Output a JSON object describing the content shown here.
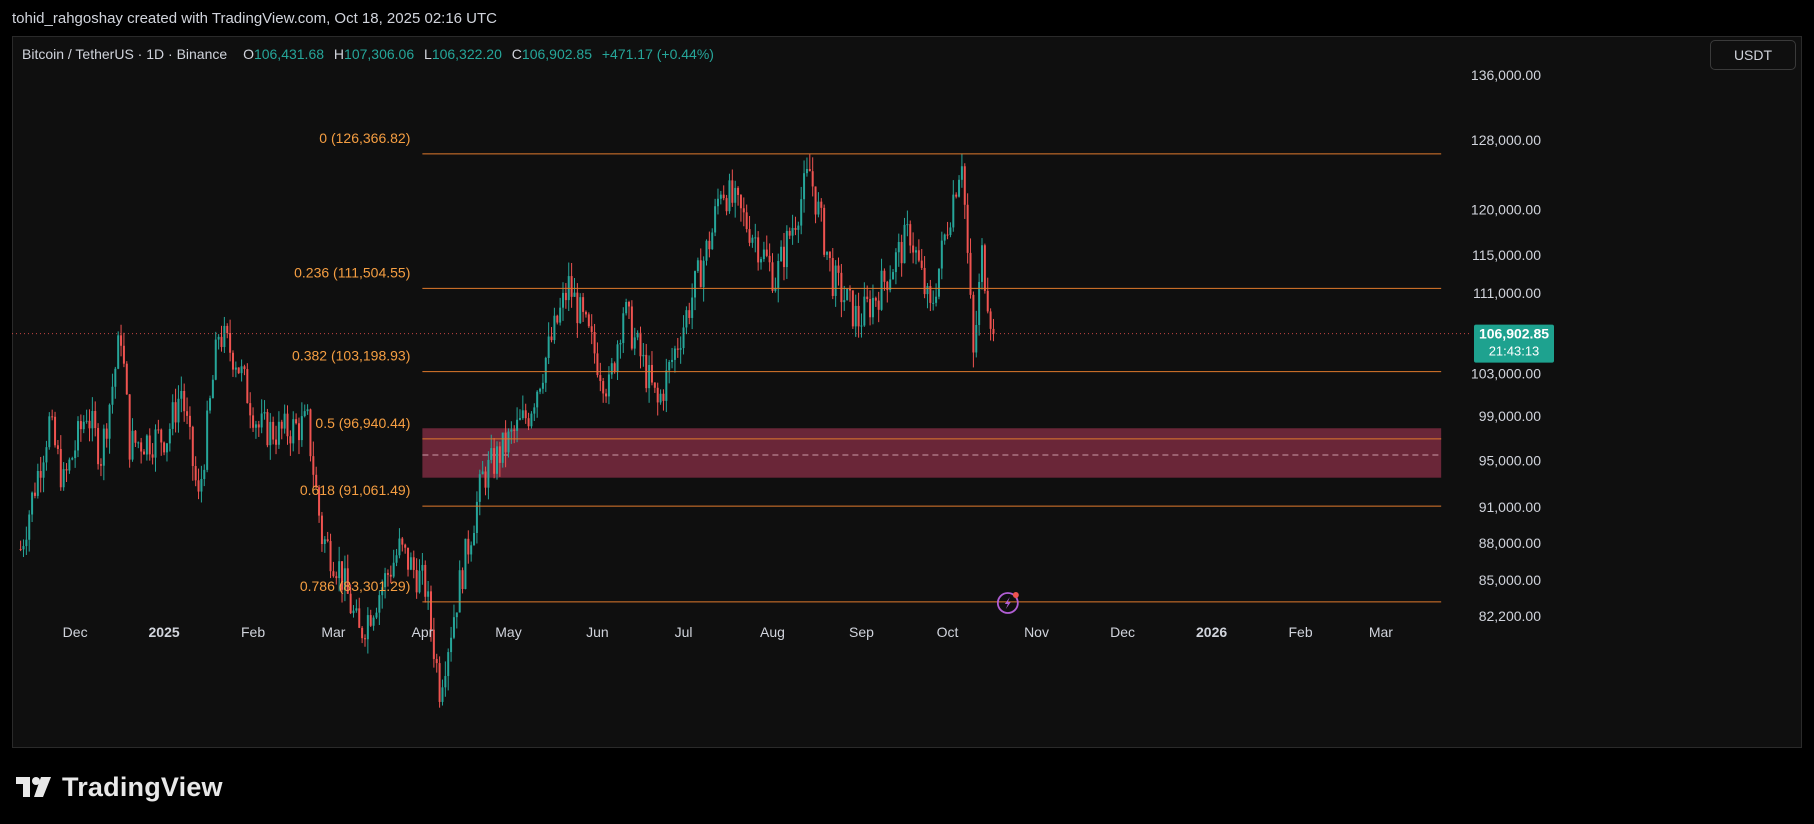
{
  "header": {
    "attribution": "tohid_rahgoshay created with TradingView.com, Oct 18, 2025 02:16 UTC"
  },
  "legend": {
    "symbol": "Bitcoin / TetherUS · 1D · Binance",
    "open_label": "O",
    "open": "106,431.68",
    "high_label": "H",
    "high": "107,306.06",
    "low_label": "L",
    "low": "106,322.20",
    "close_label": "C",
    "close": "106,902.85",
    "change": "+471.17 (+0.44%)"
  },
  "currency_button": "USDT",
  "brand": {
    "name": "TradingView"
  },
  "colors": {
    "up": "#26a69a",
    "down": "#ef5350",
    "fib": "#e07a2c",
    "fib_label": "#f59e42",
    "zone": "#7a2a3f",
    "background": "#0f0f0f",
    "price_tag": "#1ea28f"
  },
  "icons": {
    "alert": "lightning-alert-icon"
  },
  "chart_data": {
    "type": "candlestick",
    "interval": "1D",
    "y_axis": {
      "position": "right",
      "scale": "log",
      "range": [
        80700,
        141000
      ],
      "ticks": [
        82200,
        85000,
        88000,
        91000,
        95000,
        99000,
        103000,
        111000,
        115000,
        120000,
        128000,
        136000
      ],
      "tick_labels": [
        "82,200.00",
        "85,000.00",
        "88,000.00",
        "91,000.00",
        "95,000.00",
        "99,000.00",
        "103,000.00",
        "111,000.00",
        "115,000.00",
        "120,000.00",
        "128,000.00",
        "136,000.00"
      ]
    },
    "x_axis": {
      "range": [
        "2024-11-09",
        "2026-03-31"
      ],
      "ticks": [
        {
          "date": "2024-12-01",
          "label": "Dec",
          "bold": false
        },
        {
          "date": "2025-01-01",
          "label": "2025",
          "bold": true
        },
        {
          "date": "2025-02-01",
          "label": "Feb",
          "bold": false
        },
        {
          "date": "2025-03-01",
          "label": "Mar",
          "bold": false
        },
        {
          "date": "2025-04-01",
          "label": "Apr",
          "bold": false
        },
        {
          "date": "2025-05-01",
          "label": "May",
          "bold": false
        },
        {
          "date": "2025-06-01",
          "label": "Jun",
          "bold": false
        },
        {
          "date": "2025-07-01",
          "label": "Jul",
          "bold": false
        },
        {
          "date": "2025-08-01",
          "label": "Aug",
          "bold": false
        },
        {
          "date": "2025-09-01",
          "label": "Sep",
          "bold": false
        },
        {
          "date": "2025-10-01",
          "label": "Oct",
          "bold": false
        },
        {
          "date": "2025-11-01",
          "label": "Nov",
          "bold": false
        },
        {
          "date": "2025-12-01",
          "label": "Dec",
          "bold": false
        },
        {
          "date": "2026-01-01",
          "label": "2026",
          "bold": true
        },
        {
          "date": "2026-02-01",
          "label": "Feb",
          "bold": false
        },
        {
          "date": "2026-03-01",
          "label": "Mar",
          "bold": false
        }
      ]
    },
    "last_price": {
      "value": 106902.85,
      "label": "106,902.85",
      "countdown": "21:43:13"
    },
    "price_path": [
      [
        "2024-11-12",
        87500
      ],
      [
        "2024-11-22",
        98400
      ],
      [
        "2024-11-27",
        93000
      ],
      [
        "2024-12-05",
        99500
      ],
      [
        "2024-12-10",
        95500
      ],
      [
        "2024-12-17",
        107000
      ],
      [
        "2024-12-20",
        96500
      ],
      [
        "2025-01-02",
        97200
      ],
      [
        "2025-01-07",
        101500
      ],
      [
        "2025-01-13",
        91500
      ],
      [
        "2025-01-20",
        107000
      ],
      [
        "2025-01-26",
        104500
      ],
      [
        "2025-02-03",
        98000
      ],
      [
        "2025-02-10",
        97500
      ],
      [
        "2025-02-20",
        98300
      ],
      [
        "2025-02-25",
        88500
      ],
      [
        "2025-03-03",
        86000
      ],
      [
        "2025-03-10",
        80800
      ],
      [
        "2025-03-24",
        87500
      ],
      [
        "2025-04-02",
        84500
      ],
      [
        "2025-04-07",
        77000
      ],
      [
        "2025-04-14",
        84700
      ],
      [
        "2025-04-22",
        93500
      ],
      [
        "2025-05-08",
        99300
      ],
      [
        "2025-05-22",
        111800
      ],
      [
        "2025-06-05",
        101500
      ],
      [
        "2025-06-10",
        109500
      ],
      [
        "2025-06-22",
        100000
      ],
      [
        "2025-07-02",
        108800
      ],
      [
        "2025-07-11",
        117500
      ],
      [
        "2025-07-14",
        122800
      ],
      [
        "2025-07-25",
        117500
      ],
      [
        "2025-08-02",
        112500
      ],
      [
        "2025-08-14",
        124300
      ],
      [
        "2025-08-22",
        112500
      ],
      [
        "2025-08-31",
        108200
      ],
      [
        "2025-09-07",
        111200
      ],
      [
        "2025-09-18",
        117500
      ],
      [
        "2025-09-25",
        109000
      ],
      [
        "2025-10-01",
        118500
      ],
      [
        "2025-10-06",
        126300
      ],
      [
        "2025-10-10",
        104500
      ],
      [
        "2025-10-13",
        115000
      ],
      [
        "2025-10-17",
        106900
      ]
    ],
    "fibonacci": {
      "start_date": "2025-04-01",
      "end_date": "2026-03-22",
      "levels": [
        {
          "ratio": "0",
          "price": 126366.82,
          "label": "0 (126,366.82)"
        },
        {
          "ratio": "0.236",
          "price": 111504.55,
          "label": "0.236 (111,504.55)"
        },
        {
          "ratio": "0.382",
          "price": 103198.93,
          "label": "0.382 (103,198.93)"
        },
        {
          "ratio": "0.5",
          "price": 96940.44,
          "label": "0.5 (96,940.44)"
        },
        {
          "ratio": "0.618",
          "price": 91061.49,
          "label": "0.618 (91,061.49)"
        },
        {
          "ratio": "0.786",
          "price": 83301.29,
          "label": "0.786 (83,301.29)"
        }
      ]
    },
    "zone": {
      "start_date": "2025-04-01",
      "end_date": "2026-03-22",
      "top": 97900,
      "bottom": 93500,
      "mid": 95500
    }
  }
}
